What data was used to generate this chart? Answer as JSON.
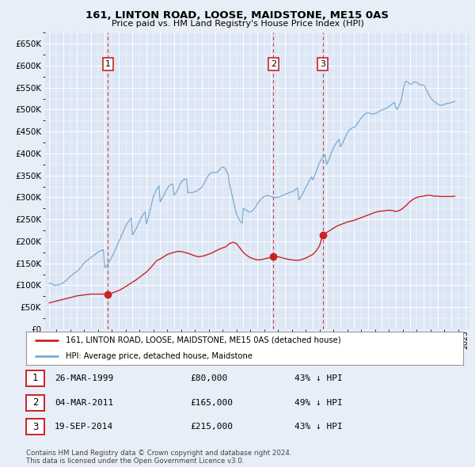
{
  "title": "161, LINTON ROAD, LOOSE, MAIDSTONE, ME15 0AS",
  "subtitle": "Price paid vs. HM Land Registry's House Price Index (HPI)",
  "ylim": [
    0,
    675000
  ],
  "yticks": [
    0,
    50000,
    100000,
    150000,
    200000,
    250000,
    300000,
    350000,
    400000,
    450000,
    500000,
    550000,
    600000,
    650000
  ],
  "xlim_start": 1994.7,
  "xlim_end": 2025.3,
  "background_color": "#e8eef8",
  "plot_bg_color": "#dce6f5",
  "grid_color": "#ffffff",
  "hpi_color": "#7aaad0",
  "price_color": "#cc2222",
  "transactions": [
    {
      "date_num": 1999.24,
      "price": 80000,
      "label": "1"
    },
    {
      "date_num": 2011.17,
      "price": 165000,
      "label": "2"
    },
    {
      "date_num": 2014.72,
      "price": 215000,
      "label": "3"
    }
  ],
  "legend_label_price": "161, LINTON ROAD, LOOSE, MAIDSTONE, ME15 0AS (detached house)",
  "legend_label_hpi": "HPI: Average price, detached house, Maidstone",
  "table_rows": [
    {
      "num": "1",
      "date": "26-MAR-1999",
      "price": "£80,000",
      "note": "43% ↓ HPI"
    },
    {
      "num": "2",
      "date": "04-MAR-2011",
      "price": "£165,000",
      "note": "49% ↓ HPI"
    },
    {
      "num": "3",
      "date": "19-SEP-2014",
      "price": "£215,000",
      "note": "43% ↓ HPI"
    }
  ],
  "footer": "Contains HM Land Registry data © Crown copyright and database right 2024.\nThis data is licensed under the Open Government Licence v3.0.",
  "hpi_data": {
    "years": [
      1995.0,
      1995.083,
      1995.167,
      1995.25,
      1995.333,
      1995.417,
      1995.5,
      1995.583,
      1995.667,
      1995.75,
      1995.833,
      1995.917,
      1996.0,
      1996.083,
      1996.167,
      1996.25,
      1996.333,
      1996.417,
      1996.5,
      1996.583,
      1996.667,
      1996.75,
      1996.833,
      1996.917,
      1997.0,
      1997.083,
      1997.167,
      1997.25,
      1997.333,
      1997.417,
      1997.5,
      1997.583,
      1997.667,
      1997.75,
      1997.833,
      1997.917,
      1998.0,
      1998.083,
      1998.167,
      1998.25,
      1998.333,
      1998.417,
      1998.5,
      1998.583,
      1998.667,
      1998.75,
      1998.833,
      1998.917,
      1999.0,
      1999.083,
      1999.167,
      1999.25,
      1999.333,
      1999.417,
      1999.5,
      1999.583,
      1999.667,
      1999.75,
      1999.833,
      1999.917,
      2000.0,
      2000.083,
      2000.167,
      2000.25,
      2000.333,
      2000.417,
      2000.5,
      2000.583,
      2000.667,
      2000.75,
      2000.833,
      2000.917,
      2001.0,
      2001.083,
      2001.167,
      2001.25,
      2001.333,
      2001.417,
      2001.5,
      2001.583,
      2001.667,
      2001.75,
      2001.833,
      2001.917,
      2002.0,
      2002.083,
      2002.167,
      2002.25,
      2002.333,
      2002.417,
      2002.5,
      2002.583,
      2002.667,
      2002.75,
      2002.833,
      2002.917,
      2003.0,
      2003.083,
      2003.167,
      2003.25,
      2003.333,
      2003.417,
      2003.5,
      2003.583,
      2003.667,
      2003.75,
      2003.833,
      2003.917,
      2004.0,
      2004.083,
      2004.167,
      2004.25,
      2004.333,
      2004.417,
      2004.5,
      2004.583,
      2004.667,
      2004.75,
      2004.833,
      2004.917,
      2005.0,
      2005.083,
      2005.167,
      2005.25,
      2005.333,
      2005.417,
      2005.5,
      2005.583,
      2005.667,
      2005.75,
      2005.833,
      2005.917,
      2006.0,
      2006.083,
      2006.167,
      2006.25,
      2006.333,
      2006.417,
      2006.5,
      2006.583,
      2006.667,
      2006.75,
      2006.833,
      2006.917,
      2007.0,
      2007.083,
      2007.167,
      2007.25,
      2007.333,
      2007.417,
      2007.5,
      2007.583,
      2007.667,
      2007.75,
      2007.833,
      2007.917,
      2008.0,
      2008.083,
      2008.167,
      2008.25,
      2008.333,
      2008.417,
      2008.5,
      2008.583,
      2008.667,
      2008.75,
      2008.833,
      2008.917,
      2009.0,
      2009.083,
      2009.167,
      2009.25,
      2009.333,
      2009.417,
      2009.5,
      2009.583,
      2009.667,
      2009.75,
      2009.833,
      2009.917,
      2010.0,
      2010.083,
      2010.167,
      2010.25,
      2010.333,
      2010.417,
      2010.5,
      2010.583,
      2010.667,
      2010.75,
      2010.833,
      2010.917,
      2011.0,
      2011.083,
      2011.167,
      2011.25,
      2011.333,
      2011.417,
      2011.5,
      2011.583,
      2011.667,
      2011.75,
      2011.833,
      2011.917,
      2012.0,
      2012.083,
      2012.167,
      2012.25,
      2012.333,
      2012.417,
      2012.5,
      2012.583,
      2012.667,
      2012.75,
      2012.833,
      2012.917,
      2013.0,
      2013.083,
      2013.167,
      2013.25,
      2013.333,
      2013.417,
      2013.5,
      2013.583,
      2013.667,
      2013.75,
      2013.833,
      2013.917,
      2014.0,
      2014.083,
      2014.167,
      2014.25,
      2014.333,
      2014.417,
      2014.5,
      2014.583,
      2014.667,
      2014.75,
      2014.833,
      2014.917,
      2015.0,
      2015.083,
      2015.167,
      2015.25,
      2015.333,
      2015.417,
      2015.5,
      2015.583,
      2015.667,
      2015.75,
      2015.833,
      2015.917,
      2016.0,
      2016.083,
      2016.167,
      2016.25,
      2016.333,
      2016.417,
      2016.5,
      2016.583,
      2016.667,
      2016.75,
      2016.833,
      2016.917,
      2017.0,
      2017.083,
      2017.167,
      2017.25,
      2017.333,
      2017.417,
      2017.5,
      2017.583,
      2017.667,
      2017.75,
      2017.833,
      2017.917,
      2018.0,
      2018.083,
      2018.167,
      2018.25,
      2018.333,
      2018.417,
      2018.5,
      2018.583,
      2018.667,
      2018.75,
      2018.833,
      2018.917,
      2019.0,
      2019.083,
      2019.167,
      2019.25,
      2019.333,
      2019.417,
      2019.5,
      2019.583,
      2019.667,
      2019.75,
      2019.833,
      2019.917,
      2020.0,
      2020.083,
      2020.167,
      2020.25,
      2020.333,
      2020.417,
      2020.5,
      2020.583,
      2020.667,
      2020.75,
      2020.833,
      2020.917,
      2021.0,
      2021.083,
      2021.167,
      2021.25,
      2021.333,
      2021.417,
      2021.5,
      2021.583,
      2021.667,
      2021.75,
      2021.833,
      2021.917,
      2022.0,
      2022.083,
      2022.167,
      2022.25,
      2022.333,
      2022.417,
      2022.5,
      2022.583,
      2022.667,
      2022.75,
      2022.833,
      2022.917,
      2023.0,
      2023.083,
      2023.167,
      2023.25,
      2023.333,
      2023.417,
      2023.5,
      2023.583,
      2023.667,
      2023.75,
      2023.833,
      2023.917,
      2024.0,
      2024.083,
      2024.167,
      2024.25
    ],
    "values": [
      104000,
      105000,
      103000,
      102000,
      101000,
      100000,
      100000,
      101000,
      101000,
      102000,
      103000,
      104000,
      105000,
      108000,
      110000,
      112000,
      114000,
      117000,
      120000,
      122000,
      124000,
      126000,
      128000,
      130000,
      132000,
      134000,
      137000,
      140000,
      143000,
      147000,
      150000,
      153000,
      155000,
      157000,
      159000,
      161000,
      163000,
      165000,
      167000,
      169000,
      171000,
      173000,
      175000,
      177000,
      178000,
      179000,
      180000,
      181000,
      140000,
      143000,
      146000,
      150000,
      154000,
      159000,
      164000,
      169000,
      174000,
      180000,
      186000,
      192000,
      198000,
      204000,
      210000,
      216000,
      222000,
      228000,
      234000,
      239000,
      243000,
      247000,
      250000,
      253000,
      215000,
      219000,
      223000,
      228000,
      233000,
      239000,
      245000,
      251000,
      256000,
      260000,
      264000,
      267000,
      240000,
      248000,
      258000,
      268000,
      279000,
      290000,
      300000,
      308000,
      314000,
      319000,
      323000,
      326000,
      290000,
      294000,
      299000,
      304000,
      309000,
      315000,
      320000,
      324000,
      327000,
      329000,
      330000,
      330000,
      305000,
      308000,
      312000,
      317000,
      323000,
      329000,
      334000,
      337000,
      340000,
      341000,
      342000,
      342000,
      310000,
      311000,
      311000,
      311000,
      311000,
      312000,
      313000,
      314000,
      315000,
      317000,
      319000,
      321000,
      323000,
      327000,
      332000,
      337000,
      342000,
      347000,
      351000,
      354000,
      356000,
      357000,
      357000,
      357000,
      356000,
      357000,
      359000,
      362000,
      365000,
      368000,
      369000,
      369000,
      366000,
      362000,
      357000,
      351000,
      330000,
      320000,
      308000,
      296000,
      284000,
      273000,
      264000,
      257000,
      251000,
      247000,
      244000,
      241000,
      275000,
      274000,
      272000,
      270000,
      268000,
      267000,
      267000,
      268000,
      270000,
      273000,
      276000,
      279000,
      286000,
      289000,
      292000,
      295000,
      298000,
      300000,
      302000,
      303000,
      304000,
      304000,
      304000,
      303000,
      302000,
      301000,
      300000,
      300000,
      300000,
      300000,
      300000,
      301000,
      302000,
      303000,
      305000,
      306000,
      307000,
      308000,
      309000,
      310000,
      311000,
      312000,
      313000,
      314000,
      316000,
      318000,
      320000,
      322000,
      295000,
      298000,
      302000,
      307000,
      312000,
      317000,
      322000,
      327000,
      332000,
      337000,
      342000,
      347000,
      340000,
      346000,
      352000,
      359000,
      366000,
      373000,
      379000,
      384000,
      388000,
      392000,
      395000,
      397000,
      375000,
      380000,
      386000,
      393000,
      400000,
      407000,
      413000,
      418000,
      422000,
      426000,
      429000,
      432000,
      415000,
      419000,
      424000,
      430000,
      436000,
      442000,
      447000,
      451000,
      454000,
      456000,
      458000,
      459000,
      460000,
      462000,
      465000,
      469000,
      473000,
      477000,
      481000,
      484000,
      487000,
      489000,
      491000,
      492000,
      492000,
      492000,
      491000,
      490000,
      490000,
      490000,
      491000,
      492000,
      494000,
      495000,
      497000,
      498000,
      499000,
      500000,
      501000,
      502000,
      503000,
      505000,
      507000,
      509000,
      511000,
      513000,
      515000,
      516000,
      505000,
      500000,
      505000,
      510000,
      516000,
      526000,
      540000,
      554000,
      562000,
      564000,
      563000,
      561000,
      558000,
      558000,
      559000,
      561000,
      563000,
      563000,
      562000,
      560000,
      558000,
      557000,
      556000,
      556000,
      556000,
      553000,
      548000,
      542000,
      537000,
      532000,
      528000,
      524000,
      521000,
      519000,
      517000,
      515000,
      513000,
      511000,
      510000,
      510000,
      510000,
      511000,
      512000,
      513000,
      514000,
      514000,
      515000,
      515000,
      516000,
      517000,
      518000,
      519000
    ]
  },
  "price_data": {
    "years": [
      1995.0,
      1995.25,
      1995.5,
      1995.75,
      1996.0,
      1996.25,
      1996.5,
      1996.75,
      1997.0,
      1997.25,
      1997.5,
      1997.75,
      1998.0,
      1998.25,
      1998.5,
      1998.75,
      1999.0,
      1999.24,
      1999.5,
      1999.75,
      2000.0,
      2000.25,
      2000.5,
      2000.75,
      2001.0,
      2001.25,
      2001.5,
      2001.75,
      2002.0,
      2002.25,
      2002.5,
      2002.75,
      2003.0,
      2003.25,
      2003.5,
      2003.75,
      2004.0,
      2004.25,
      2004.5,
      2004.75,
      2005.0,
      2005.25,
      2005.5,
      2005.75,
      2006.0,
      2006.25,
      2006.5,
      2006.75,
      2007.0,
      2007.25,
      2007.5,
      2007.75,
      2008.0,
      2008.25,
      2008.5,
      2008.75,
      2009.0,
      2009.25,
      2009.5,
      2009.75,
      2010.0,
      2010.25,
      2010.5,
      2010.75,
      2011.0,
      2011.17,
      2011.25,
      2011.5,
      2011.75,
      2012.0,
      2012.25,
      2012.5,
      2012.75,
      2013.0,
      2013.25,
      2013.5,
      2013.75,
      2014.0,
      2014.25,
      2014.5,
      2014.72,
      2014.75,
      2015.0,
      2015.25,
      2015.5,
      2015.75,
      2016.0,
      2016.25,
      2016.5,
      2016.75,
      2017.0,
      2017.25,
      2017.5,
      2017.75,
      2018.0,
      2018.25,
      2018.5,
      2018.75,
      2019.0,
      2019.25,
      2019.5,
      2019.75,
      2020.0,
      2020.25,
      2020.5,
      2020.75,
      2021.0,
      2021.25,
      2021.5,
      2021.75,
      2022.0,
      2022.25,
      2022.5,
      2022.75,
      2023.0,
      2023.25,
      2023.5,
      2023.75,
      2024.0,
      2024.25
    ],
    "values": [
      60000,
      62000,
      64000,
      66000,
      68000,
      70000,
      72000,
      74000,
      76000,
      77000,
      78000,
      79000,
      80000,
      80000,
      80000,
      80000,
      80000,
      80000,
      82000,
      85000,
      88000,
      92000,
      97000,
      102000,
      107000,
      112000,
      118000,
      124000,
      130000,
      138000,
      147000,
      156000,
      160000,
      165000,
      170000,
      173000,
      175000,
      177000,
      177000,
      175000,
      173000,
      170000,
      167000,
      165000,
      166000,
      168000,
      171000,
      174000,
      178000,
      182000,
      185000,
      188000,
      195000,
      198000,
      195000,
      185000,
      175000,
      168000,
      163000,
      160000,
      158000,
      158000,
      160000,
      162000,
      163000,
      165000,
      166000,
      165000,
      163000,
      161000,
      159000,
      158000,
      157000,
      157000,
      159000,
      162000,
      166000,
      170000,
      178000,
      190000,
      215000,
      216000,
      220000,
      225000,
      230000,
      235000,
      238000,
      241000,
      244000,
      246000,
      248000,
      251000,
      254000,
      257000,
      260000,
      263000,
      266000,
      268000,
      269000,
      270000,
      271000,
      270000,
      268000,
      270000,
      275000,
      282000,
      290000,
      296000,
      300000,
      302000,
      303000,
      305000,
      305000,
      303000,
      303000,
      302000,
      302000,
      302000,
      302000,
      303000
    ]
  }
}
